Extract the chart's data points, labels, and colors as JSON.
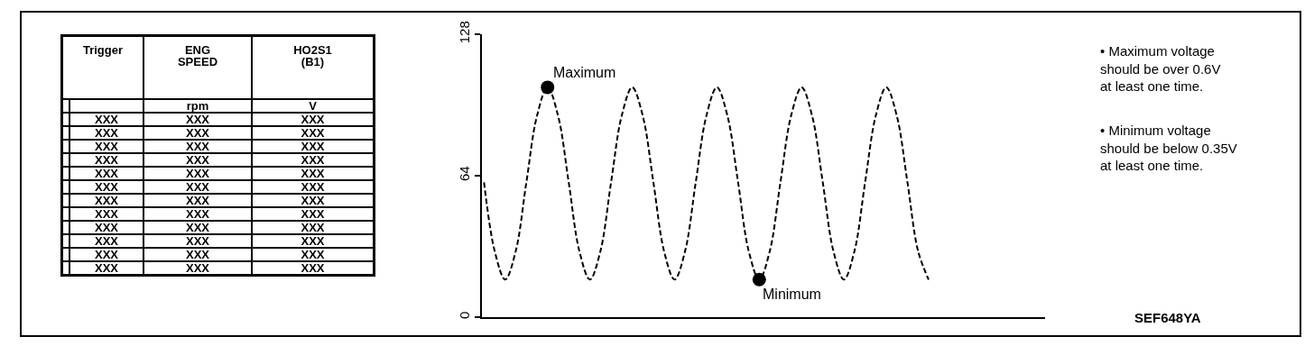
{
  "chart_data": [
    {
      "type": "other",
      "categories": [
        "Trigger",
        "ENG SPEED",
        "HO2S1 (B1)"
      ],
      "cell_labels": [
        [
          null,
          "rpm",
          "V"
        ],
        [
          "XXX",
          "XXX",
          "XXX"
        ],
        [
          "XXX",
          "XXX",
          "XXX"
        ],
        [
          "XXX",
          "XXX",
          "XXX"
        ],
        [
          "XXX",
          "XXX",
          "XXX"
        ],
        [
          "XXX",
          "XXX",
          "XXX"
        ],
        [
          "XXX",
          "XXX",
          "XXX"
        ],
        [
          "XXX",
          "XXX",
          "XXX"
        ],
        [
          "XXX",
          "XXX",
          "XXX"
        ],
        [
          "XXX",
          "XXX",
          "XXX"
        ],
        [
          "XXX",
          "XXX",
          "XXX"
        ],
        [
          "XXX",
          "XXX",
          "XXX"
        ],
        [
          "XXX",
          "XXX",
          "XXX"
        ]
      ]
    },
    {
      "type": "line",
      "categories": [
        null,
        null,
        null,
        null,
        null,
        null,
        null,
        null,
        null,
        null,
        null,
        null,
        null,
        null,
        null,
        null,
        null,
        null,
        null,
        null,
        null,
        null,
        null,
        null,
        null,
        null,
        null,
        null,
        null,
        null,
        null,
        null,
        null,
        null,
        null,
        null,
        null,
        null,
        null,
        null,
        null,
        null,
        null
      ],
      "series": [
        {
          "type": "line",
          "color": "#000000",
          "line_style": "dashed",
          "marker": "none",
          "values": [
            61,
            30,
            17,
            30,
            61,
            91,
            104,
            91,
            61,
            30,
            17,
            30,
            61,
            91,
            104,
            91,
            61,
            30,
            17,
            30,
            61,
            91,
            104,
            91,
            61,
            30,
            17,
            30,
            61,
            91,
            104,
            91,
            61,
            30,
            17,
            30,
            61,
            91,
            104,
            91,
            61,
            30,
            17
          ]
        },
        {
          "type": "scatter",
          "color": "#000000",
          "marker": "circle",
          "values": [
            null,
            null,
            null,
            null,
            null,
            null,
            104,
            null,
            null,
            null,
            null,
            null,
            null,
            null,
            null,
            null,
            null,
            null,
            null,
            null,
            null,
            null,
            null,
            null,
            null,
            null,
            17,
            null,
            null,
            null,
            null,
            null,
            null,
            null,
            null,
            null,
            null,
            null,
            null,
            null,
            null,
            null,
            null
          ]
        }
      ],
      "ylim": [
        0,
        128
      ],
      "yticks": [
        0,
        64,
        128
      ],
      "tick_labels": "y",
      "grid": false,
      "annotations": [
        "Maximum",
        "Minimum",
        "• Maximum voltage\nshould be over 0.6V\nat least one time.",
        "• Minimum voltage\nshould be below 0.35V\nat least one time.",
        "SEF648YA"
      ]
    }
  ]
}
